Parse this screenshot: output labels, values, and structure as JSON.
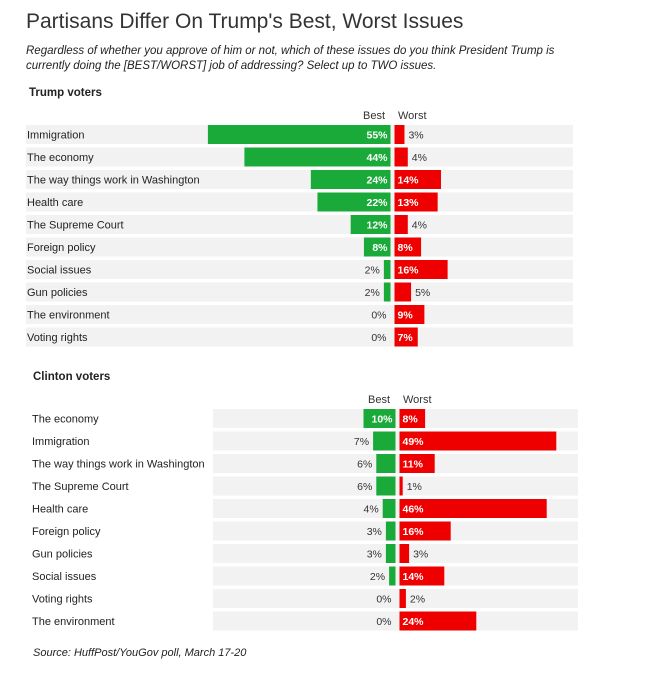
{
  "title": "Partisans Differ On Trump's Best, Worst Issues",
  "subtitle": "Regardless of whether you approve of him or not, which of these issues do you think President Trump is currently doing the [BEST/WORST] job of addressing? Select up to TWO issues.",
  "source": "Source: HuffPost/YouGov poll, March 17-20",
  "colors": {
    "best": "#1aaa3a",
    "worst": "#ee0000",
    "row_bg": "#f2f2f2"
  },
  "chart_data": [
    {
      "type": "bar",
      "title": "Trump voters",
      "best_label": "Best",
      "worst_label": "Worst",
      "categories": [
        "Immigration",
        "The economy",
        "The way things work in Washington",
        "Health care",
        "The Supreme Court",
        "Foreign policy",
        "Social issues",
        "Gun policies",
        "The environment",
        "Voting rights"
      ],
      "series": [
        {
          "name": "Best",
          "values": [
            55,
            44,
            24,
            22,
            12,
            8,
            2,
            2,
            0,
            0
          ]
        },
        {
          "name": "Worst",
          "values": [
            3,
            4,
            14,
            13,
            4,
            8,
            16,
            5,
            9,
            7
          ]
        }
      ],
      "value_suffix": "%"
    },
    {
      "type": "bar",
      "title": "Clinton voters",
      "best_label": "Best",
      "worst_label": "Worst",
      "categories": [
        "The economy",
        "Immigration",
        "The way things work in Washington",
        "The Supreme Court",
        "Health care",
        "Foreign policy",
        "Gun policies",
        "Social issues",
        "Voting rights",
        "The environment"
      ],
      "series": [
        {
          "name": "Best",
          "values": [
            10,
            7,
            6,
            6,
            4,
            3,
            3,
            2,
            0,
            0
          ]
        },
        {
          "name": "Worst",
          "values": [
            8,
            49,
            11,
            1,
            46,
            16,
            3,
            14,
            2,
            24
          ]
        }
      ],
      "value_suffix": "%"
    }
  ]
}
